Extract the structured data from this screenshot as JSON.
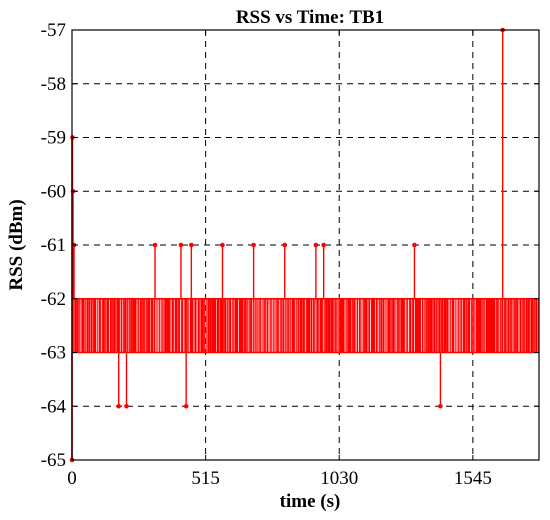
{
  "chart_data": {
    "type": "line",
    "title": "RSS vs Time: TB1",
    "xlabel": "time (s)",
    "ylabel": "RSS (dBm)",
    "xlim": [
      0,
      1800
    ],
    "ylim": [
      -65,
      -57
    ],
    "xticks": [
      0,
      515,
      1030,
      1545
    ],
    "yticks": [
      -65,
      -64,
      -63,
      -62,
      -61,
      -60,
      -59,
      -58,
      -57
    ],
    "grid": true,
    "series_color": "#ff0000",
    "baseline_band": {
      "low": -63,
      "high": -62,
      "x_range": [
        0,
        1800
      ]
    },
    "series": [
      {
        "x": [
          0,
          2,
          4,
          8,
          12,
          16,
          24,
          32,
          40,
          55,
          70,
          82,
          95,
          110,
          130,
          150,
          165,
          180,
          195,
          210,
          230,
          250,
          270,
          290,
          310,
          320,
          340,
          360,
          380,
          395,
          410,
          420,
          440,
          460,
          480,
          500,
          520,
          540,
          560,
          580,
          600,
          620,
          640,
          660,
          690,
          700,
          720,
          740,
          760,
          780,
          800,
          820,
          850,
          880,
          900,
          930,
          940,
          960,
          970,
          990,
          1010,
          1040,
          1070,
          1100,
          1130,
          1160,
          1190,
          1220,
          1250,
          1280,
          1310,
          1320,
          1340,
          1370,
          1400,
          1420,
          1440,
          1460,
          1490,
          1520,
          1550,
          1580,
          1610,
          1640,
          1660,
          1680,
          1700,
          1720,
          1740,
          1760,
          1780,
          1800
        ],
        "y": [
          -65,
          -59,
          -60,
          -61,
          -62,
          -63,
          -62,
          -63,
          -62,
          -63,
          -62,
          -63,
          -62,
          -63,
          -62,
          -63,
          -62,
          -64,
          -63,
          -64,
          -62,
          -63,
          -62,
          -63,
          -62,
          -61,
          -62,
          -63,
          -62,
          -63,
          -62,
          -61,
          -64,
          -61,
          -62,
          -63,
          -62,
          -63,
          -62,
          -61,
          -62,
          -63,
          -62,
          -63,
          -62,
          -61,
          -63,
          -62,
          -63,
          -62,
          -63,
          -61,
          -62,
          -63,
          -62,
          -63,
          -61,
          -62,
          -61,
          -63,
          -62,
          -63,
          -62,
          -63,
          -62,
          -63,
          -62,
          -63,
          -62,
          -63,
          -62,
          -61,
          -63,
          -62,
          -63,
          -64,
          -62,
          -63,
          -62,
          -63,
          -62,
          -63,
          -62,
          -63,
          -57,
          -62,
          -63,
          -62,
          -63,
          -62,
          -63,
          -62
        ]
      }
    ]
  }
}
